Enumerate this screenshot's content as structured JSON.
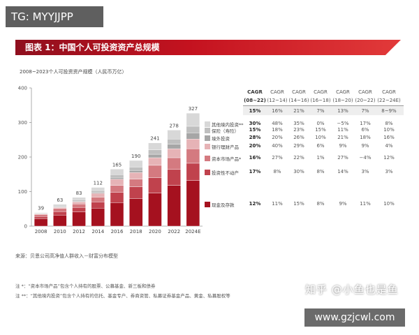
{
  "watermark_top": "TG: MYYJJPP",
  "banner_title": "图表 1：中国个人可投资资产总规模",
  "subtitle": "2008~2023个人可投资资产规模（人民币万亿）",
  "source": "来源：贝恩公司高净值人群收入－财富分布模型",
  "notes": [
    "注 *：“资本市场产品”包含个人持有的股票、公募基金、新三板和债券",
    "注 **：“其他境内投资”包含个人持有的信托、基金专户、券商资管、私募证券基金产品、黄金、私募股权等"
  ],
  "watermark_zhihu": "知乎 @小鱼也是鱼",
  "watermark_site": "www.gzjcwl.com",
  "colors": {
    "banner": "#c4121f",
    "other_domestic": "#d8d8d8",
    "insurance": "#bfbfbf",
    "overseas": "#a6a6a6",
    "bank_wm": "#e6b3b6",
    "capital_market": "#d47a80",
    "investable_property": "#c0424d",
    "cash_deposit": "#a5111f"
  },
  "cagr_headers": [
    {
      "label": "CAGR",
      "range": "(08~22)"
    },
    {
      "label": "CAGR",
      "range": "(12~14)"
    },
    {
      "label": "CAGR",
      "range": "(14~16)"
    },
    {
      "label": "CAGR",
      "range": "(16~18)"
    },
    {
      "label": "CAGR",
      "range": "(18~20)"
    },
    {
      "label": "CAGR",
      "range": "(20~22)"
    },
    {
      "label": "CAGR",
      "range": "(22~24E)"
    }
  ],
  "cagr_total": [
    "15%",
    "16%",
    "21%",
    "7%",
    "13%",
    "7%",
    "8~9%"
  ],
  "cagr_rows": [
    {
      "name": "其他境内投资**",
      "color_key": "other_domestic",
      "values": [
        "30%",
        "48%",
        "35%",
        "0%",
        "−5%",
        "17%",
        "8%"
      ]
    },
    {
      "name": "保险（寿险）",
      "color_key": "insurance",
      "values": [
        "15%",
        "18%",
        "23%",
        "15%",
        "11%",
        "6%",
        "10%"
      ]
    },
    {
      "name": "境外投资",
      "color_key": "overseas",
      "values": [
        "28%",
        "20%",
        "26%",
        "10%",
        "21%",
        "18%",
        "16%"
      ]
    },
    {
      "name": "银行理财产品",
      "color_key": "bank_wm",
      "values": [
        "20%",
        "40%",
        "29%",
        "6%",
        "9%",
        "9%",
        "4%"
      ]
    },
    {
      "name": "资本市场产品*",
      "color_key": "capital_market",
      "values": [
        "16%",
        "27%",
        "22%",
        "1%",
        "27%",
        "−4%",
        "12%"
      ]
    },
    {
      "name": "投资性不动产",
      "color_key": "investable_property",
      "values": [
        "17%",
        "8%",
        "30%",
        "8%",
        "14%",
        "3%",
        "3%"
      ]
    },
    {
      "name": "现金及存款",
      "color_key": "cash_deposit",
      "values": [
        "12%",
        "11%",
        "15%",
        "8%",
        "9%",
        "11%",
        "10%"
      ]
    }
  ],
  "chart_data": {
    "type": "bar",
    "stacked": true,
    "title": "2008~2023个人可投资资产规模（人民币万亿）",
    "ylim": [
      0,
      400
    ],
    "yticks": [
      0,
      100,
      200,
      300,
      400
    ],
    "categories": [
      "2008",
      "2010",
      "2012",
      "2014",
      "2016",
      "2018",
      "2020",
      "2022",
      "2024E"
    ],
    "totals": [
      39,
      63,
      83,
      112,
      165,
      190,
      241,
      278,
      327
    ],
    "series": [
      {
        "name": "现金及存款",
        "color_key": "cash_deposit",
        "values": [
          22,
          32,
          41,
          52,
          68,
          80,
          96,
          118,
          132
        ]
      },
      {
        "name": "投资性不动产",
        "color_key": "investable_property",
        "values": [
          6,
          10,
          13,
          18,
          30,
          34,
          44,
          46,
          50
        ]
      },
      {
        "name": "资本市场产品*",
        "color_key": "capital_market",
        "values": [
          6,
          9,
          10,
          14,
          20,
          22,
          36,
          34,
          42
        ]
      },
      {
        "name": "银行理财产品",
        "color_key": "bank_wm",
        "values": [
          1,
          3,
          6,
          11,
          18,
          19,
          22,
          26,
          28
        ]
      },
      {
        "name": "境外投资",
        "color_key": "overseas",
        "values": [
          1,
          1,
          2,
          3,
          5,
          6,
          10,
          13,
          18
        ]
      },
      {
        "name": "保险（寿险）",
        "color_key": "insurance",
        "values": [
          2,
          3,
          4,
          5,
          8,
          10,
          13,
          15,
          19
        ]
      },
      {
        "name": "其他境内投资**",
        "color_key": "other_domestic",
        "values": [
          1,
          5,
          7,
          9,
          16,
          19,
          20,
          26,
          38
        ]
      }
    ]
  }
}
